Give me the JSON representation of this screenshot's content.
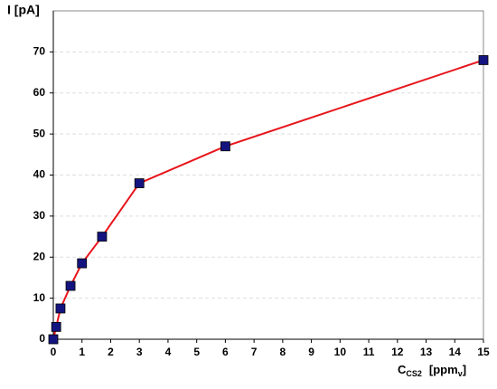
{
  "chart_data": {
    "type": "line",
    "ylabel": "I  [pA]",
    "xlabel": {
      "symbol": "C",
      "symbol_sub": "CS2",
      "unit": "[ppm",
      "unit_sub": "v",
      "unit_end": "]"
    },
    "x": [
      0,
      0.1,
      0.25,
      0.6,
      1,
      1.7,
      3,
      6,
      15
    ],
    "values": [
      0,
      3,
      7.5,
      13,
      18.5,
      25,
      38,
      47,
      68
    ],
    "color": "#e8151b",
    "marker_color": "#141480",
    "xlim": [
      0,
      15
    ],
    "xticks": [
      0,
      1,
      2,
      3,
      4,
      5,
      6,
      7,
      8,
      9,
      10,
      11,
      12,
      13,
      14,
      15
    ],
    "ylim": [
      0,
      80
    ],
    "yticks": [
      0,
      10,
      20,
      30,
      40,
      50,
      60,
      70
    ],
    "grid": true
  }
}
